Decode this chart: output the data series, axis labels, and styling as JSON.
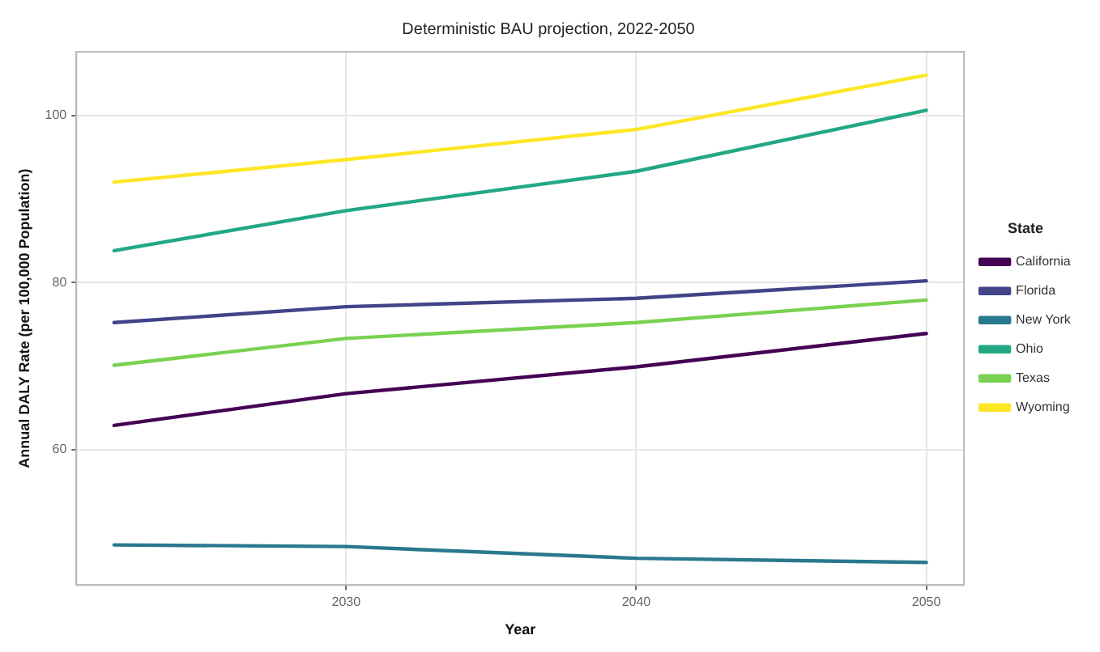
{
  "chart_data": {
    "type": "line",
    "title": "Deterministic BAU projection, 2022-2050",
    "xlabel": "Year",
    "ylabel": "Annual DALY Rate (per 100,000 Population)",
    "legend_title": "State",
    "x": [
      2022,
      2030,
      2040,
      2050
    ],
    "series": [
      {
        "name": "California",
        "color": "#440154",
        "values": [
          62.9,
          66.7,
          69.9,
          73.9
        ]
      },
      {
        "name": "Florida",
        "color": "#414487",
        "values": [
          75.2,
          77.1,
          78.1,
          80.2
        ]
      },
      {
        "name": "New York",
        "color": "#2a788e",
        "values": [
          48.6,
          48.4,
          47.0,
          46.5
        ]
      },
      {
        "name": "Ohio",
        "color": "#22a884",
        "values": [
          83.8,
          88.6,
          93.3,
          100.6
        ]
      },
      {
        "name": "Texas",
        "color": "#7ad151",
        "values": [
          70.1,
          73.3,
          75.2,
          77.9
        ]
      },
      {
        "name": "Wyoming",
        "color": "#fde725",
        "values": [
          92.0,
          94.7,
          98.3,
          104.8
        ]
      }
    ],
    "xlim": [
      2020.7,
      2051.3
    ],
    "xticks": [
      2030,
      2040,
      2050
    ],
    "ylim": [
      43.8,
      107.6
    ],
    "yticks": [
      60,
      80,
      100
    ],
    "grid": true,
    "legend": "right",
    "marker": "none",
    "line_style": "solid"
  }
}
